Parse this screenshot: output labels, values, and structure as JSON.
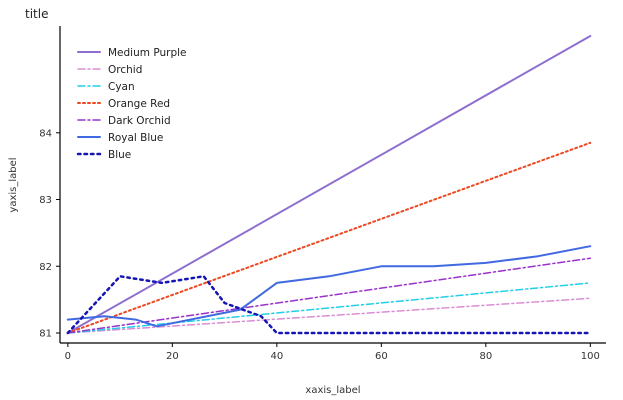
{
  "chart_data": {
    "type": "line",
    "title": "title",
    "xlabel": "xaxis_label",
    "ylabel": "yaxis_label",
    "xlim": [
      -1.5,
      103
    ],
    "ylim": [
      80.85,
      85.6
    ],
    "x_ticks": [
      0,
      20,
      40,
      60,
      80,
      100
    ],
    "y_ticks": [
      81,
      82,
      83,
      84
    ],
    "grid": false,
    "legend_position": "top-left",
    "series": [
      {
        "name": "Medium Purple",
        "color": "#8c6fcf",
        "style": "solid",
        "width": 2,
        "x": [
          0,
          100
        ],
        "y": [
          81.0,
          85.45
        ]
      },
      {
        "name": "Orchid",
        "color": "#d98fd4",
        "style": "dashdot",
        "width": 1.5,
        "x": [
          0,
          100
        ],
        "y": [
          81.0,
          81.52
        ]
      },
      {
        "name": "Cyan",
        "color": "#22cfe6",
        "style": "dashdot",
        "width": 1.5,
        "x": [
          0,
          100
        ],
        "y": [
          81.0,
          81.75
        ]
      },
      {
        "name": "Orange Red",
        "color": "#ee4822",
        "style": "dotted",
        "width": 2,
        "x": [
          0,
          100
        ],
        "y": [
          81.0,
          83.85
        ]
      },
      {
        "name": "Dark Orchid",
        "color": "#9932cc",
        "style": "dashdot",
        "width": 1.5,
        "x": [
          0,
          100
        ],
        "y": [
          81.0,
          82.12
        ]
      },
      {
        "name": "Royal Blue",
        "color": "#4169e1",
        "style": "solid",
        "width": 2,
        "x": [
          0,
          7,
          13,
          17,
          33,
          40,
          50,
          60,
          70,
          80,
          90,
          100
        ],
        "y": [
          81.2,
          81.25,
          81.2,
          81.1,
          81.35,
          81.75,
          81.85,
          82.0,
          82.0,
          82.05,
          82.15,
          82.3
        ]
      },
      {
        "name": "Blue",
        "color": "#1515b5",
        "style": "dotted",
        "width": 2.5,
        "x": [
          0,
          10,
          18,
          26,
          30,
          37,
          40,
          50,
          60,
          70,
          80,
          90,
          100
        ],
        "y": [
          81.0,
          81.85,
          81.75,
          81.85,
          81.45,
          81.25,
          81.0,
          81.0,
          81.0,
          81.0,
          81.0,
          81.0,
          81.0
        ]
      }
    ]
  }
}
